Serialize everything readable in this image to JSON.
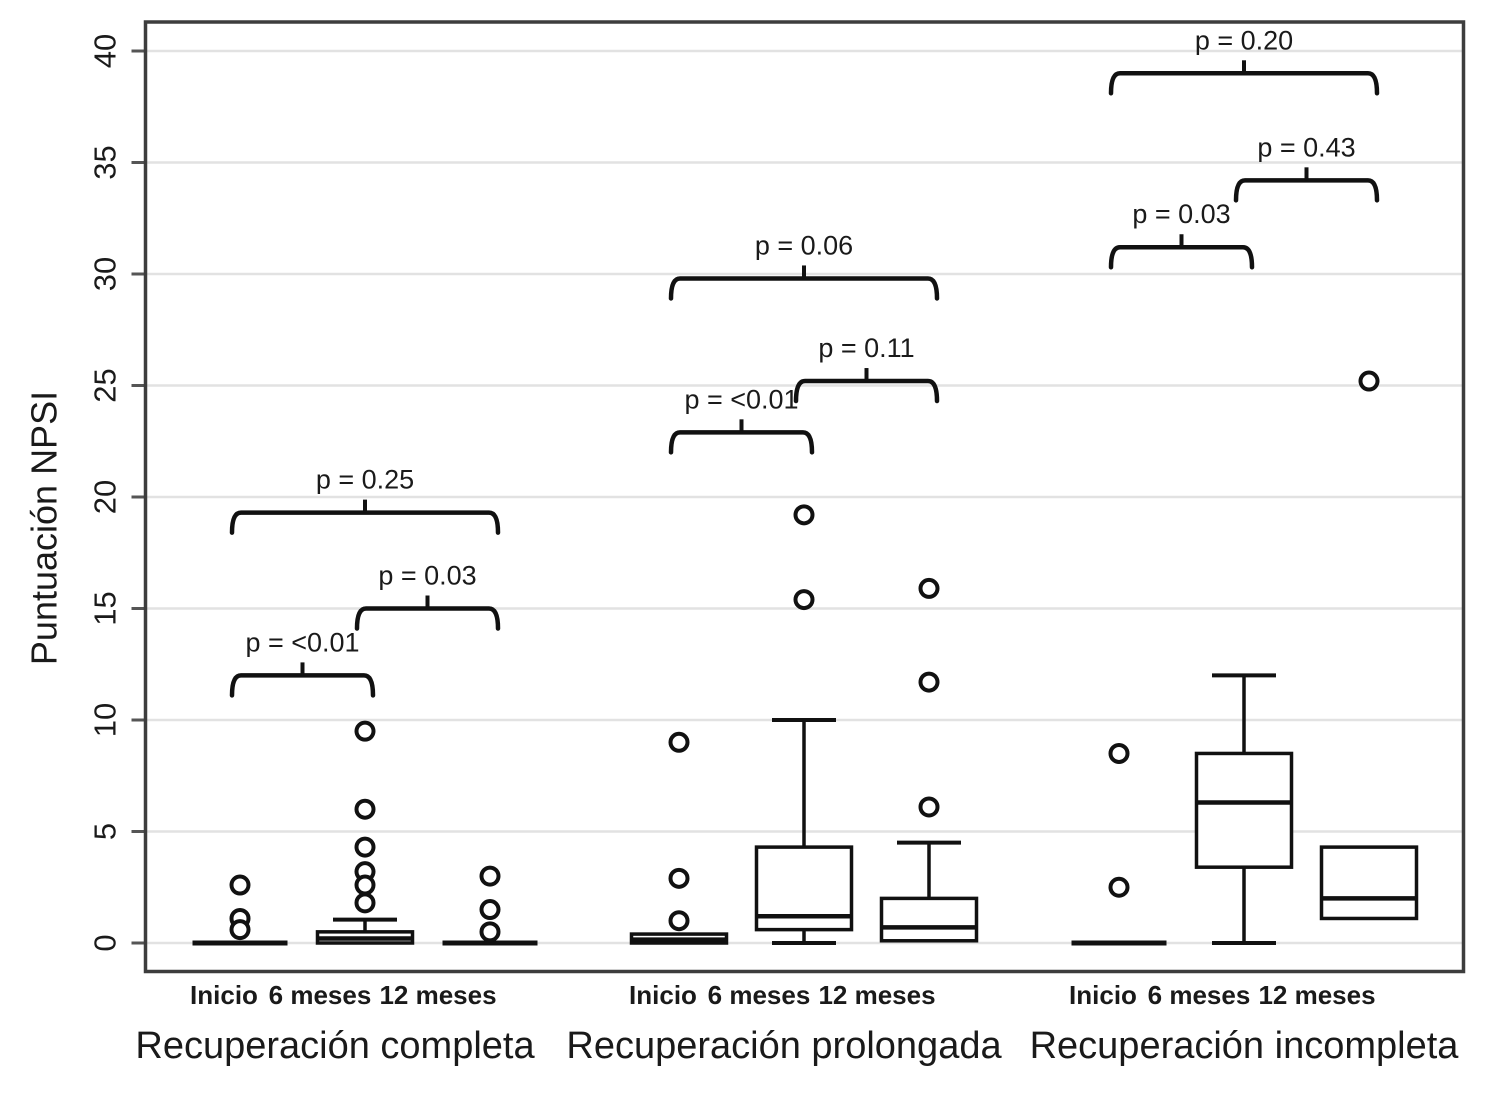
{
  "chart_data": {
    "type": "boxplot",
    "title": "",
    "ylabel": "Puntuación NPSI",
    "ylim": [
      0,
      40
    ],
    "yticks": [
      0,
      5,
      10,
      15,
      20,
      25,
      30,
      35,
      40
    ],
    "grid": "horizontal",
    "legend": "none",
    "groups": [
      {
        "label": "Recuperación completa",
        "columns": [
          {
            "label": "Inicio",
            "box": {
              "q1": 0,
              "median": 0,
              "q3": 0
            },
            "whisker_low": null,
            "whisker_high": null,
            "outliers": [
              2.6,
              1.1,
              0.6
            ]
          },
          {
            "label": "6 meses",
            "box": {
              "q1": 0,
              "median": 0.2,
              "q3": 0.5
            },
            "whisker_low": null,
            "whisker_high": 1.05,
            "outliers": [
              9.5,
              6.0,
              4.3,
              3.2,
              2.6,
              1.8
            ]
          },
          {
            "label": "12 meses",
            "box": {
              "q1": 0,
              "median": 0,
              "q3": 0
            },
            "whisker_low": null,
            "whisker_high": null,
            "outliers": [
              3.0,
              1.5,
              0.5
            ]
          }
        ],
        "brackets": [
          {
            "from": 0,
            "to": 1,
            "label": "p = <0.01",
            "y_value": 12.0
          },
          {
            "from": 1,
            "to": 2,
            "label": "p = 0.03",
            "y_value": 15.0
          },
          {
            "from": 0,
            "to": 2,
            "label": "p = 0.25",
            "y_value": 19.3
          }
        ]
      },
      {
        "label": "Recuperación prolongada",
        "columns": [
          {
            "label": "Inicio",
            "box": {
              "q1": 0,
              "median": 0.15,
              "q3": 0.4
            },
            "whisker_low": null,
            "whisker_high": null,
            "outliers": [
              9.0,
              2.9,
              1.0
            ]
          },
          {
            "label": "6 meses",
            "box": {
              "q1": 0.6,
              "median": 1.2,
              "q3": 4.3
            },
            "whisker_low": 0,
            "whisker_high": 10.0,
            "outliers": [
              19.2,
              15.4
            ]
          },
          {
            "label": "12 meses",
            "box": {
              "q1": 0.1,
              "median": 0.7,
              "q3": 2.0
            },
            "whisker_low": null,
            "whisker_high": 4.5,
            "outliers": [
              15.9,
              11.7,
              6.1
            ]
          }
        ],
        "brackets": [
          {
            "from": 0,
            "to": 1,
            "label": "p = <0.01",
            "y_value": 22.9
          },
          {
            "from": 1,
            "to": 2,
            "label": "p = 0.11",
            "y_value": 25.2
          },
          {
            "from": 0,
            "to": 2,
            "label": "p = 0.06",
            "y_value": 29.8
          }
        ]
      },
      {
        "label": "Recuperación incompleta",
        "columns": [
          {
            "label": "Inicio",
            "box": {
              "q1": 0,
              "median": 0,
              "q3": 0
            },
            "whisker_low": null,
            "whisker_high": null,
            "outliers": [
              8.5,
              2.5
            ]
          },
          {
            "label": "6 meses",
            "box": {
              "q1": 3.4,
              "median": 6.3,
              "q3": 8.5
            },
            "whisker_low": 0,
            "whisker_high": 12.0,
            "outliers": []
          },
          {
            "label": "12 meses",
            "box": {
              "q1": 1.1,
              "median": 2.0,
              "q3": 4.3
            },
            "whisker_low": null,
            "whisker_high": null,
            "outliers": [
              25.2
            ]
          }
        ],
        "brackets": [
          {
            "from": 0,
            "to": 1,
            "label": "p = 0.03",
            "y_value": 31.2
          },
          {
            "from": 1,
            "to": 2,
            "label": "p = 0.43",
            "y_value": 34.2
          },
          {
            "from": 0,
            "to": 2,
            "label": "p = 0.20",
            "y_value": 39.0
          }
        ]
      }
    ]
  }
}
